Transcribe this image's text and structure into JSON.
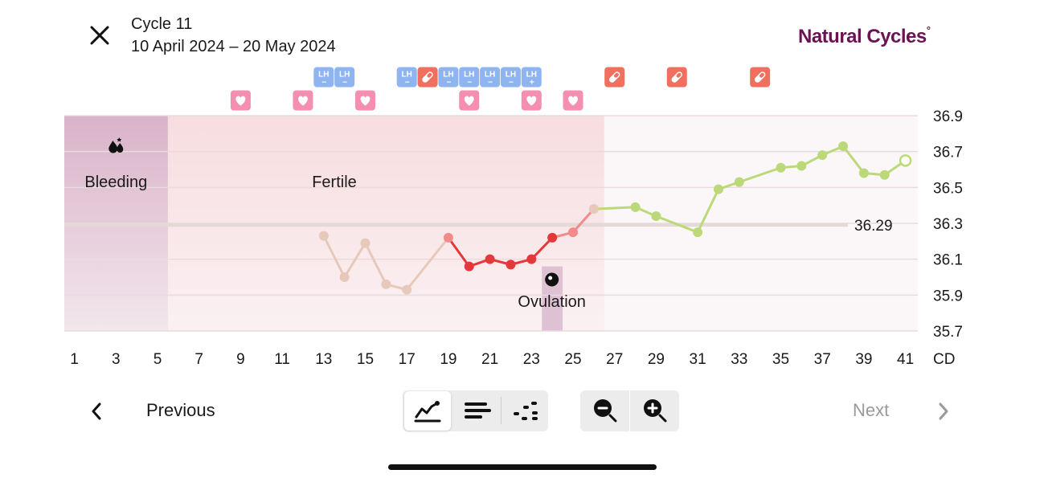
{
  "header": {
    "title": "Cycle 11",
    "date_range": "10 April 2024 – 20 May 2024",
    "brand": "Natural Cycles",
    "brand_mark": "°"
  },
  "icons": {
    "close": "close-icon",
    "prev": "chevron-left-icon",
    "next": "chevron-right-icon",
    "zoom_out": "zoom-out-icon",
    "zoom_in": "zoom-in-icon",
    "view_graph": "line-graph-icon",
    "view_list": "bars-icon",
    "view_scatter": "dots-icon"
  },
  "bottom_nav": {
    "previous_label": "Previous",
    "next_label": "Next",
    "next_enabled": false
  },
  "colors": {
    "brand": "#6b1254",
    "bleeding_band": "#d9b3c9",
    "fertile_band": "#f8dde0",
    "lh_badge": "#8fb5f0",
    "heart_badge": "#f48fb1",
    "pill_badge": "#f06f5f",
    "temp_red": "#e5383b",
    "temp_pink": "#f38a8a",
    "temp_beige": "#e6c9ba",
    "temp_green": "#bcd97a",
    "coverline": "#e5d9d6",
    "ovulation_band": "#dec2d3"
  },
  "chart_data": {
    "type": "line",
    "x_label": "CD",
    "x_ticks": [
      1,
      3,
      5,
      7,
      9,
      11,
      13,
      15,
      17,
      19,
      21,
      23,
      25,
      27,
      29,
      31,
      33,
      35,
      37,
      39,
      41
    ],
    "y_ticks": [
      35.7,
      35.9,
      36.1,
      36.3,
      36.5,
      36.7,
      36.9
    ],
    "ylim": [
      35.7,
      36.9
    ],
    "xlim": [
      1,
      41
    ],
    "coverline": 36.29,
    "coverline_label": "36.29",
    "phases": [
      {
        "name": "Bleeding",
        "from": 1,
        "to": 5,
        "icon": "blood-drops-icon"
      },
      {
        "name": "Fertile",
        "from": 6,
        "to": 26
      }
    ],
    "ovulation": {
      "day": 24,
      "label": "Ovulation",
      "icon": "ovulation-icon"
    },
    "series": [
      {
        "color_group": "beige",
        "points": [
          [
            13,
            36.23
          ],
          [
            14,
            36.0
          ],
          [
            15,
            36.19
          ],
          [
            16,
            35.96
          ],
          [
            17,
            35.93
          ]
        ]
      },
      {
        "color_group": "red",
        "points": [
          [
            19,
            36.22
          ],
          [
            20,
            36.06
          ],
          [
            21,
            36.1
          ],
          [
            22,
            36.07
          ],
          [
            23,
            36.1
          ],
          [
            24,
            36.22
          ],
          [
            25,
            36.25
          ],
          [
            26,
            36.38
          ]
        ]
      },
      {
        "color_group": "green",
        "points": [
          [
            28,
            36.39
          ],
          [
            29,
            36.34
          ],
          [
            31,
            36.25
          ],
          [
            32,
            36.49
          ],
          [
            33,
            36.53
          ],
          [
            35,
            36.61
          ],
          [
            36,
            36.62
          ],
          [
            37,
            36.68
          ],
          [
            38,
            36.73
          ],
          [
            39,
            36.58
          ],
          [
            40,
            36.57
          ],
          [
            41,
            36.65
          ]
        ]
      }
    ],
    "badges": [
      {
        "day": 13,
        "row": 1,
        "type": "lh",
        "text": "LH",
        "sign": "−"
      },
      {
        "day": 14,
        "row": 1,
        "type": "lh",
        "text": "LH",
        "sign": "−"
      },
      {
        "day": 17,
        "row": 1,
        "type": "lh",
        "text": "LH",
        "sign": "−"
      },
      {
        "day": 18,
        "row": 1,
        "type": "pill"
      },
      {
        "day": 19,
        "row": 1,
        "type": "lh",
        "text": "LH",
        "sign": "−"
      },
      {
        "day": 20,
        "row": 1,
        "type": "lh",
        "text": "LH",
        "sign": "−"
      },
      {
        "day": 21,
        "row": 1,
        "type": "lh",
        "text": "LH",
        "sign": "−"
      },
      {
        "day": 22,
        "row": 1,
        "type": "lh",
        "text": "LH",
        "sign": "−"
      },
      {
        "day": 23,
        "row": 1,
        "type": "lh",
        "text": "LH",
        "sign": "+"
      },
      {
        "day": 27,
        "row": 1,
        "type": "pill"
      },
      {
        "day": 30,
        "row": 1,
        "type": "pill"
      },
      {
        "day": 34,
        "row": 1,
        "type": "pill"
      },
      {
        "day": 9,
        "row": 2,
        "type": "heart"
      },
      {
        "day": 12,
        "row": 2,
        "type": "heart"
      },
      {
        "day": 15,
        "row": 2,
        "type": "heart"
      },
      {
        "day": 20,
        "row": 2,
        "type": "heart"
      },
      {
        "day": 23,
        "row": 2,
        "type": "heart"
      },
      {
        "day": 25,
        "row": 2,
        "type": "heart"
      }
    ]
  }
}
